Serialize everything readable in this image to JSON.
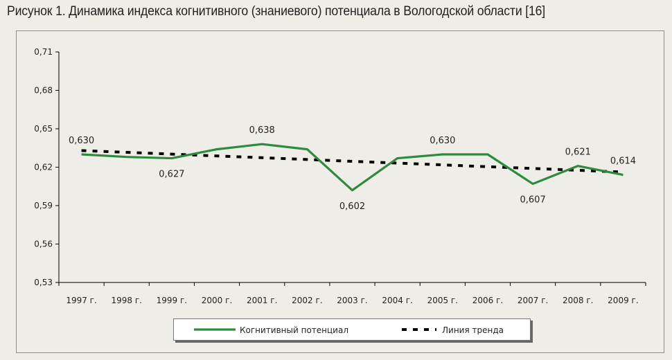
{
  "figure": {
    "title": "Рисунок 1. Динамика индекса когнитивного (знаниевого) потенциала в Вологодской области [16]"
  },
  "colors": {
    "series_line": "#2e8b3e",
    "trend_line": "#000000",
    "axis": "#000000",
    "background": "#efede7"
  },
  "chart_data": {
    "type": "line",
    "title": "Динамика индекса когнитивного (знаниевого) потенциала в Вологодской области",
    "xlabel": "",
    "ylabel": "",
    "categories": [
      "1997 г.",
      "1998 г.",
      "1999 г.",
      "2000 г.",
      "2001 г.",
      "2002 г.",
      "2003 г.",
      "2004 г.",
      "2005 г.",
      "2006 г.",
      "2007 г.",
      "2008 г.",
      "2009 г."
    ],
    "ylim": [
      0.53,
      0.71
    ],
    "yticks": [
      "0,53",
      "0,56",
      "0,59",
      "0,62",
      "0,65",
      "0,68",
      "0,71"
    ],
    "ytick_values": [
      0.53,
      0.56,
      0.59,
      0.62,
      0.65,
      0.68,
      0.71
    ],
    "series": [
      {
        "name": "Когнитивный потенциал",
        "style": "solid",
        "values": [
          0.63,
          0.628,
          0.627,
          0.634,
          0.638,
          0.634,
          0.602,
          0.627,
          0.63,
          0.63,
          0.607,
          0.621,
          0.614
        ]
      },
      {
        "name": "Линия тренда",
        "style": "dashed",
        "values": [
          0.633,
          0.6316,
          0.6302,
          0.6288,
          0.6274,
          0.626,
          0.6246,
          0.6232,
          0.6218,
          0.6204,
          0.619,
          0.6176,
          0.6162
        ]
      }
    ],
    "data_labels": [
      {
        "index": 0,
        "text": "0,630",
        "position": "above"
      },
      {
        "index": 2,
        "text": "0,627",
        "position": "below"
      },
      {
        "index": 4,
        "text": "0,638",
        "position": "above"
      },
      {
        "index": 6,
        "text": "0,602",
        "position": "below"
      },
      {
        "index": 8,
        "text": "0,630",
        "position": "above"
      },
      {
        "index": 10,
        "text": "0,607",
        "position": "below"
      },
      {
        "index": 11,
        "text": "0,621",
        "position": "above"
      },
      {
        "index": 12,
        "text": "0,614",
        "position": "above"
      }
    ],
    "legend": {
      "placement": "bottom-center",
      "items": [
        "Когнитивный потенциал",
        "Линия тренда"
      ]
    }
  }
}
